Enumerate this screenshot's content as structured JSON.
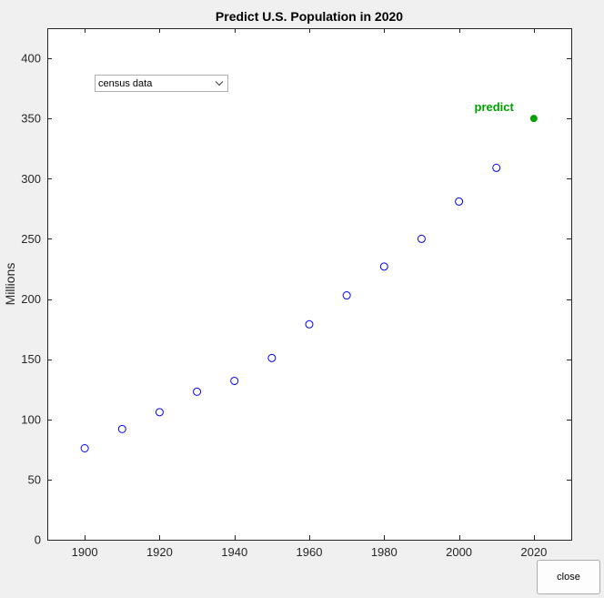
{
  "chart_data": {
    "type": "scatter",
    "title": "Predict U.S. Population in 2020",
    "xlabel": "",
    "ylabel": "Millions",
    "xlim": [
      1890,
      2030
    ],
    "ylim": [
      0,
      425
    ],
    "xticks": [
      1900,
      1920,
      1940,
      1960,
      1980,
      2000,
      2020
    ],
    "yticks": [
      0,
      50,
      100,
      150,
      200,
      250,
      300,
      350,
      400
    ],
    "grid": false,
    "series": [
      {
        "marker": "open-circle",
        "color": "#0000ff",
        "x": [
          1900,
          1910,
          1920,
          1930,
          1940,
          1950,
          1960,
          1970,
          1980,
          1990,
          2000,
          2010
        ],
        "y": [
          76,
          92,
          106,
          123,
          132,
          151,
          179,
          203,
          227,
          250,
          281,
          309
        ]
      },
      {
        "marker": "filled-circle",
        "color": "#00a000",
        "x": [
          2020
        ],
        "y": [
          350
        ]
      }
    ],
    "annotations": [
      {
        "text": "predict",
        "x": 2020,
        "y": 350,
        "color": "#00a000"
      }
    ]
  },
  "controls": {
    "method_select": {
      "value": "census data"
    },
    "close_button": {
      "label": "close"
    }
  },
  "colors": {
    "background": "#f0f0f0",
    "axes_background": "#ffffff",
    "census_marker": "#0000ff",
    "prediction_marker": "#00a000"
  }
}
